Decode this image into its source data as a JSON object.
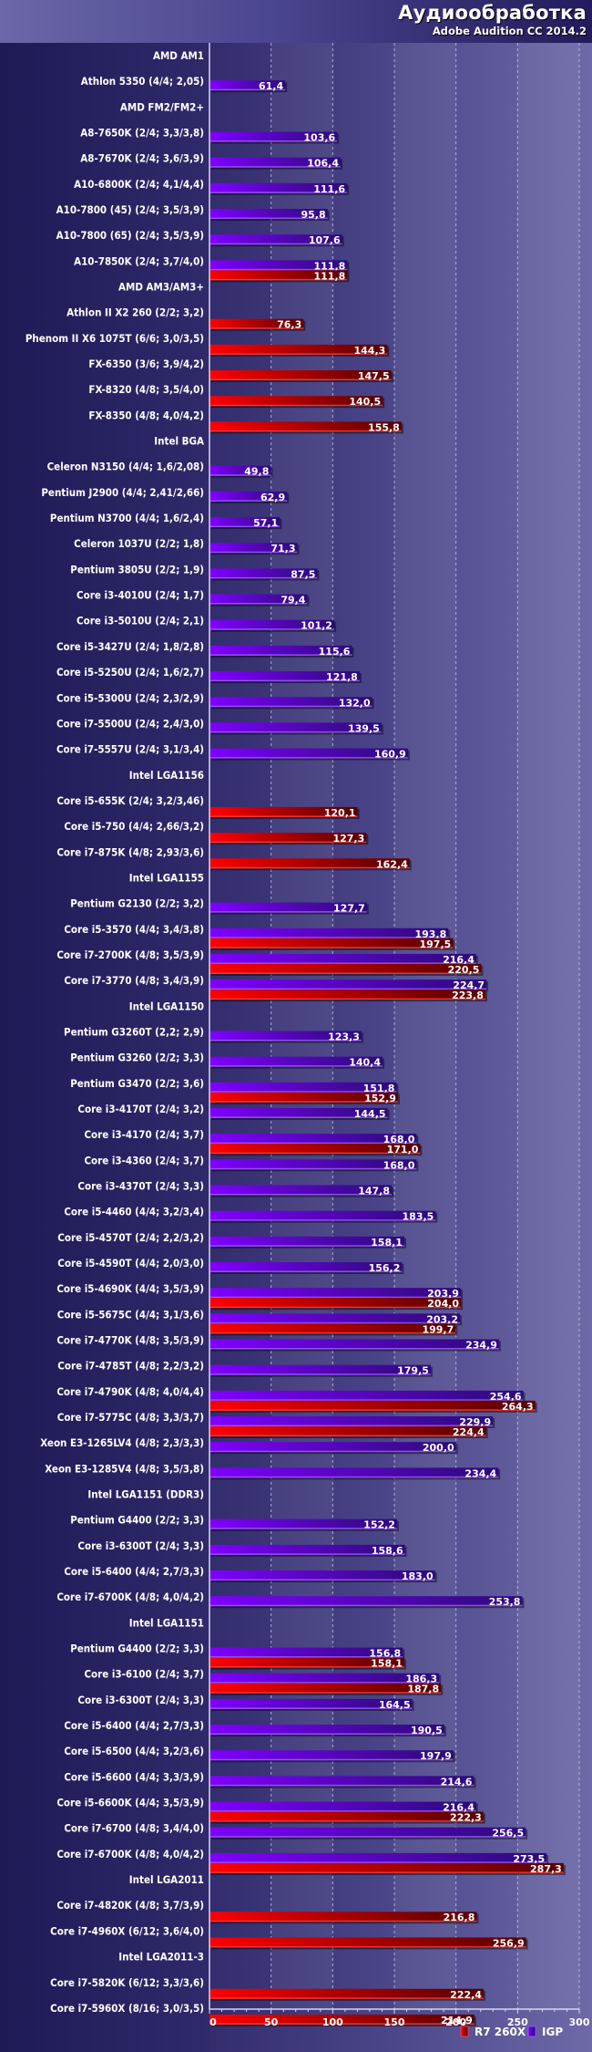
{
  "header": {
    "title": "Аудиообработка",
    "subtitle": "Adobe Audition CC 2014.2"
  },
  "chart_data": {
    "type": "bar",
    "orientation": "horizontal",
    "title": "Аудиообработка",
    "subtitle": "Adobe Audition CC 2014.2",
    "xlabel": "",
    "ylabel": "",
    "xlim": [
      0,
      300
    ],
    "xticks": [
      0,
      50,
      100,
      150,
      200,
      250,
      300
    ],
    "tick_labels": [
      "0",
      "50",
      "100",
      "150",
      "200",
      "250",
      "300"
    ],
    "grid": true,
    "legend_position": "bottom-right",
    "decimal_separator": ",",
    "series": [
      {
        "key": "r7",
        "name": "R7 260X",
        "color": "#e00000",
        "color_dark": "#5a0000"
      },
      {
        "key": "igp",
        "name": "IGP",
        "color": "#7a00ff",
        "color_dark": "#2a0a78"
      }
    ],
    "legend_order": [
      "r7",
      "igp"
    ],
    "rows": [
      {
        "label": "AMD AM1",
        "group": true
      },
      {
        "label": "Athlon 5350 (4/4; 2,05)",
        "igp": 61.4
      },
      {
        "label": "AMD FM2/FM2+",
        "group": true
      },
      {
        "label": "A8-7650K (2/4; 3,3/3,8)",
        "igp": 103.6
      },
      {
        "label": "A8-7670K (2/4; 3,6/3,9)",
        "igp": 106.4
      },
      {
        "label": "A10-6800K (2/4; 4,1/4,4)",
        "igp": 111.6
      },
      {
        "label": "A10-7800 (45) (2/4; 3,5/3,9)",
        "igp": 95.8
      },
      {
        "label": "A10-7800 (65) (2/4; 3,5/3,9)",
        "igp": 107.6
      },
      {
        "label": "A10-7850K (2/4; 3,7/4,0)",
        "igp": 111.8,
        "r7": 111.8
      },
      {
        "label": "AMD AM3/AM3+",
        "group": true
      },
      {
        "label": "Athlon II X2 260 (2/2; 3,2)",
        "r7": 76.3
      },
      {
        "label": "Phenom II X6 1075T (6/6; 3,0/3,5)",
        "r7": 144.3
      },
      {
        "label": "FX-6350 (3/6; 3,9/4,2)",
        "r7": 147.5
      },
      {
        "label": "FX-8320 (4/8; 3,5/4,0)",
        "r7": 140.5
      },
      {
        "label": "FX-8350 (4/8; 4,0/4,2)",
        "r7": 155.8
      },
      {
        "label": "Intel BGA",
        "group": true
      },
      {
        "label": "Celeron N3150 (4/4; 1,6/2,08)",
        "igp": 49.8
      },
      {
        "label": "Pentium J2900 (4/4; 2,41/2,66)",
        "igp": 62.9
      },
      {
        "label": "Pentium N3700 (4/4; 1,6/2,4)",
        "igp": 57.1
      },
      {
        "label": "Celeron 1037U (2/2; 1,8)",
        "igp": 71.3
      },
      {
        "label": "Pentium 3805U (2/2; 1,9)",
        "igp": 87.5
      },
      {
        "label": "Core i3-4010U (2/4; 1,7)",
        "igp": 79.4
      },
      {
        "label": "Core i3-5010U (2/4; 2,1)",
        "igp": 101.2
      },
      {
        "label": "Core i5-3427U (2/4; 1,8/2,8)",
        "igp": 115.6
      },
      {
        "label": "Core i5-5250U (2/4; 1,6/2,7)",
        "igp": 121.8
      },
      {
        "label": "Core i5-5300U (2/4; 2,3/2,9)",
        "igp": 132.0
      },
      {
        "label": "Core i7-5500U (2/4; 2,4/3,0)",
        "igp": 139.5
      },
      {
        "label": "Core i7-5557U (2/4; 3,1/3,4)",
        "igp": 160.9
      },
      {
        "label": "Intel LGA1156",
        "group": true
      },
      {
        "label": "Core i5-655K (2/4; 3,2/3,46)",
        "r7": 120.1
      },
      {
        "label": "Core i5-750 (4/4; 2,66/3,2)",
        "r7": 127.3
      },
      {
        "label": "Core i7-875K (4/8; 2,93/3,6)",
        "r7": 162.4
      },
      {
        "label": "Intel LGA1155",
        "group": true
      },
      {
        "label": "Pentium G2130 (2/2; 3,2)",
        "igp": 127.7
      },
      {
        "label": "Core i5-3570 (4/4; 3,4/3,8)",
        "igp": 193.8,
        "r7": 197.5
      },
      {
        "label": "Core i7-2700K (4/8; 3,5/3,9)",
        "igp": 216.4,
        "r7": 220.5
      },
      {
        "label": "Core i7-3770 (4/8; 3,4/3,9)",
        "igp": 224.7,
        "r7": 223.8
      },
      {
        "label": "Intel LGA1150",
        "group": true
      },
      {
        "label": "Pentium G3260T (2,2; 2,9)",
        "igp": 123.3
      },
      {
        "label": "Pentium G3260 (2/2; 3,3)",
        "igp": 140.4
      },
      {
        "label": "Pentium G3470 (2/2; 3,6)",
        "igp": 151.8,
        "r7": 152.9
      },
      {
        "label": "Core i3-4170T (2/4; 3,2)",
        "igp": 144.5
      },
      {
        "label": "Core i3-4170 (2/4; 3,7)",
        "igp": 168.0,
        "r7": 171.0
      },
      {
        "label": "Core i3-4360 (2/4; 3,7)",
        "igp": 168.0
      },
      {
        "label": "Core i3-4370T (2/4; 3,3)",
        "igp": 147.8
      },
      {
        "label": "Core i5-4460 (4/4; 3,2/3,4)",
        "igp": 183.5
      },
      {
        "label": "Core i5-4570T (2/4; 2,2/3,2)",
        "igp": 158.1
      },
      {
        "label": "Core i5-4590T (4/4; 2,0/3,0)",
        "igp": 156.2
      },
      {
        "label": "Core i5-4690K (4/4; 3,5/3,9)",
        "igp": 203.9,
        "r7": 204.0
      },
      {
        "label": "Core i5-5675C (4/4; 3,1/3,6)",
        "igp": 203.2,
        "r7": 199.7
      },
      {
        "label": "Core i7-4770K (4/8; 3,5/3,9)",
        "igp": 234.9
      },
      {
        "label": "Core i7-4785T (4/8; 2,2/3,2)",
        "igp": 179.5
      },
      {
        "label": "Core i7-4790K (4/8; 4,0/4,4)",
        "igp": 254.6,
        "r7": 264.3
      },
      {
        "label": "Core i7-5775C (4/8; 3,3/3,7)",
        "igp": 229.9,
        "r7": 224.4
      },
      {
        "label": "Xeon E3-1265LV4 (4/8; 2,3/3,3)",
        "igp": 200.0
      },
      {
        "label": "Xeon E3-1285V4 (4/8; 3,5/3,8)",
        "igp": 234.4
      },
      {
        "label": "Intel LGA1151 (DDR3)",
        "group": true
      },
      {
        "label": "Pentium G4400 (2/2; 3,3)",
        "igp": 152.2
      },
      {
        "label": "Core i3-6300T (2/4; 3,3)",
        "igp": 158.6
      },
      {
        "label": "Core i5-6400 (4/4; 2,7/3,3)",
        "igp": 183.0
      },
      {
        "label": "Core i7-6700K (4/8; 4,0/4,2)",
        "igp": 253.8
      },
      {
        "label": "Intel LGA1151",
        "group": true
      },
      {
        "label": "Pentium G4400 (2/2; 3,3)",
        "igp": 156.8,
        "r7": 158.1
      },
      {
        "label": "Core i3-6100 (2/4; 3,7)",
        "igp": 186.3,
        "r7": 187.8
      },
      {
        "label": "Core i3-6300T (2/4; 3,3)",
        "igp": 164.5
      },
      {
        "label": "Core i5-6400  (4/4; 2,7/3,3)",
        "igp": 190.5
      },
      {
        "label": "Core i5-6500 (4/4; 3,2/3,6)",
        "igp": 197.9
      },
      {
        "label": "Core i5-6600 (4/4; 3,3/3,9)",
        "igp": 214.6
      },
      {
        "label": "Core i5-6600K (4/4; 3,5/3,9)",
        "igp": 216.4,
        "r7": 222.3
      },
      {
        "label": "Core i7-6700 (4/8; 3,4/4,0)",
        "igp": 256.5
      },
      {
        "label": "Core i7-6700K (4/8; 4,0/4,2)",
        "igp": 273.5,
        "r7": 287.3
      },
      {
        "label": "Intel LGA2011",
        "group": true
      },
      {
        "label": "Core i7-4820K (4/8; 3,7/3,9)",
        "r7": 216.8
      },
      {
        "label": "Core i7-4960X (6/12; 3,6/4,0)",
        "r7": 256.9
      },
      {
        "label": "Intel LGA2011-3",
        "group": true
      },
      {
        "label": "Core i7-5820K (6/12; 3,3/3,6)",
        "r7": 222.4
      },
      {
        "label": "Core i7-5960X (8/16; 3,0/3,5)",
        "r7": 214.9
      }
    ]
  }
}
